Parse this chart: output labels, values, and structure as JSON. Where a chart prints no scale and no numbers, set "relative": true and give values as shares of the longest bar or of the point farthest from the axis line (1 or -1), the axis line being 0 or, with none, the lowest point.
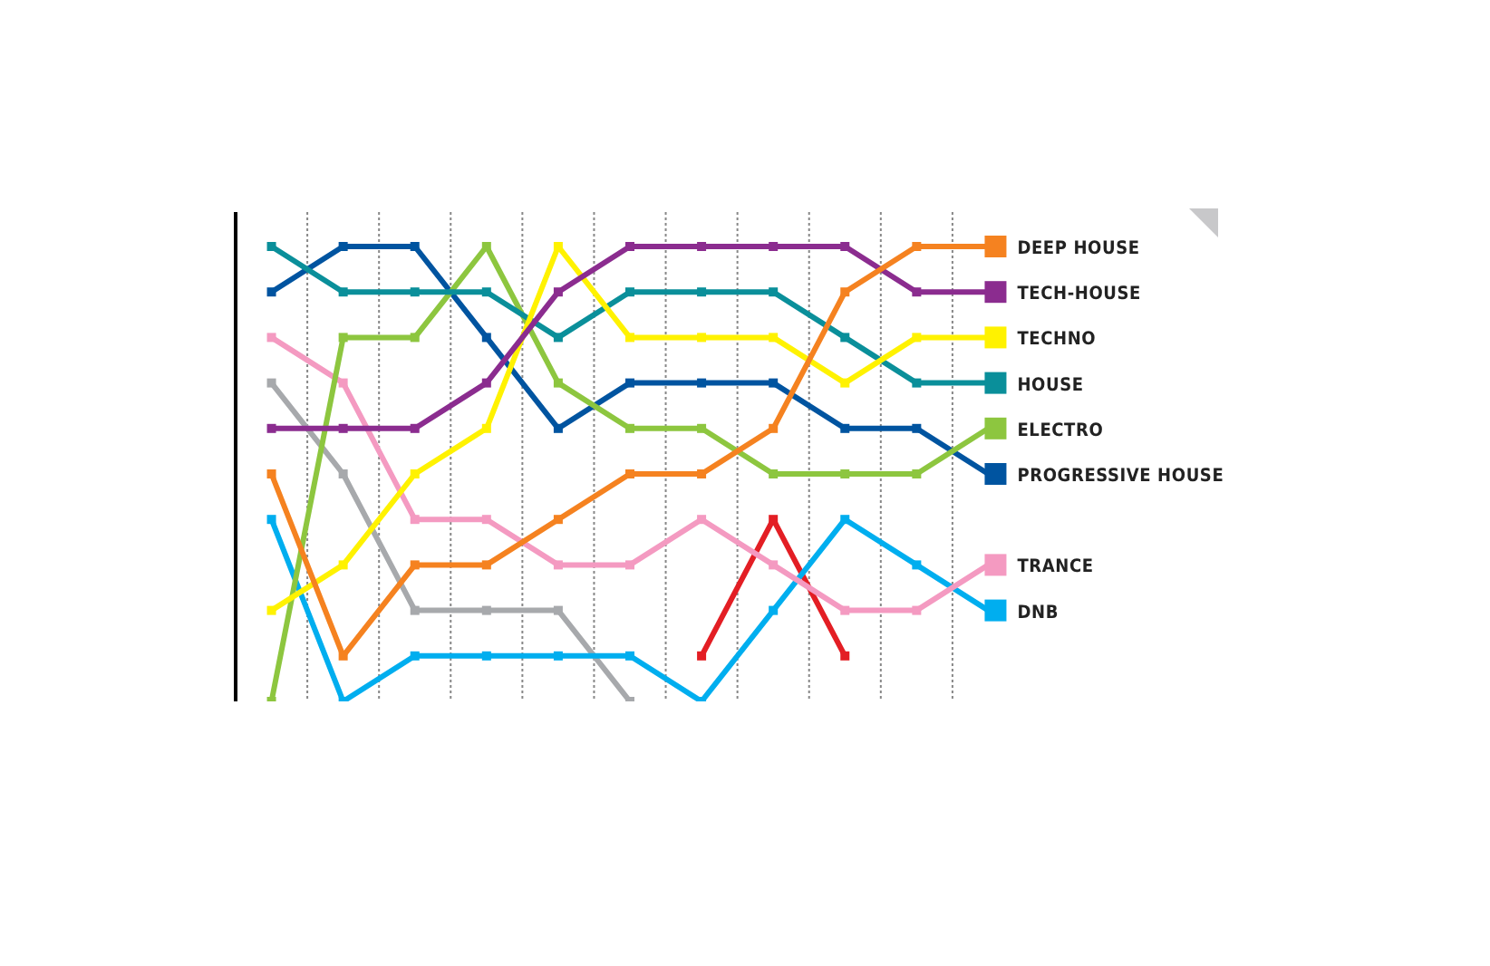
{
  "chart_data": {
    "type": "line",
    "relative": true,
    "categories": [
      null,
      null,
      null,
      null,
      null,
      null,
      null,
      null,
      null,
      null,
      null
    ],
    "series": [
      {
        "name": null,
        "color": "#a7a9ac",
        "values": [
          0.7,
          0.5,
          0.2,
          0.2,
          0.2,
          0,
          null,
          null,
          null,
          null,
          null
        ]
      },
      {
        "name": null,
        "color": "#e31e24",
        "values": [
          null,
          null,
          null,
          null,
          null,
          null,
          0.1,
          0.4,
          0.1,
          null,
          null
        ]
      },
      {
        "name": "DNB",
        "color": "#00aeef",
        "values": [
          0.4,
          0,
          0.1,
          0.1,
          0.1,
          0.1,
          0,
          0.2,
          0.4,
          0.3,
          0.2
        ]
      },
      {
        "name": "TRANCE",
        "color": "#f49ac1",
        "values": [
          0.8,
          0.7,
          0.4,
          0.4,
          0.3,
          0.3,
          0.4,
          0.3,
          0.2,
          0.2,
          0.3
        ]
      },
      {
        "name": "PROGRESSIVE HOUSE",
        "color": "#0054a0",
        "values": [
          0.9,
          1,
          1,
          0.8,
          0.6,
          0.7,
          0.7,
          0.7,
          0.6,
          0.6,
          0.5
        ]
      },
      {
        "name": "ELECTRO",
        "color": "#8dc63f",
        "values": [
          0,
          0.8,
          0.8,
          1,
          0.7,
          0.6,
          0.6,
          0.5,
          0.5,
          0.5,
          0.6
        ]
      },
      {
        "name": "HOUSE",
        "color": "#0a8f9a",
        "values": [
          1,
          0.9,
          0.9,
          0.9,
          0.8,
          0.9,
          0.9,
          0.9,
          0.8,
          0.7,
          0.7
        ]
      },
      {
        "name": "TECHNO",
        "color": "#fff200",
        "values": [
          0.2,
          0.3,
          0.5,
          0.6,
          1,
          0.8,
          0.8,
          0.8,
          0.7,
          0.8,
          0.8
        ]
      },
      {
        "name": "TECH-HOUSE",
        "color": "#8b2c8f",
        "values": [
          0.6,
          0.6,
          0.6,
          0.7,
          0.9,
          1,
          1,
          1,
          1,
          0.9,
          0.9
        ]
      },
      {
        "name": "DEEP HOUSE",
        "color": "#f58220",
        "values": [
          0.5,
          0.1,
          0.3,
          0.3,
          0.4,
          0.5,
          0.5,
          0.6,
          0.9,
          1,
          1
        ]
      }
    ],
    "grid": "x",
    "legend": "right",
    "marker": "square",
    "line_style": "solid"
  }
}
